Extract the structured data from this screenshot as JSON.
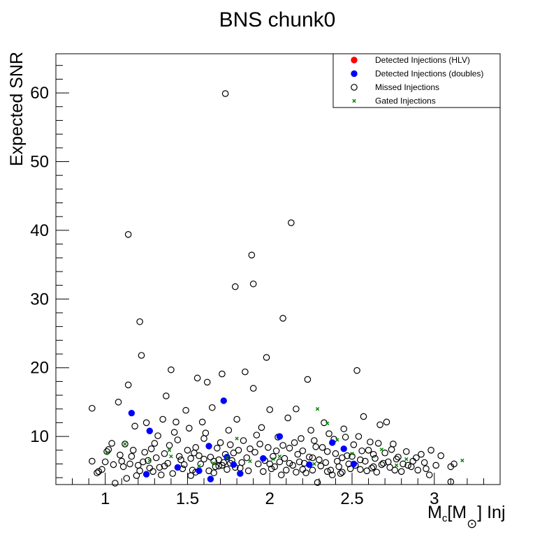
{
  "chart_data": {
    "type": "scatter",
    "title": "BNS chunk0",
    "xlabel": {
      "main": "M",
      "sub": "c",
      "bracket_open": "[M",
      "sun": "⊙",
      "bracket_close": "] Inj"
    },
    "ylabel": "Expected SNR",
    "xlim": [
      0.7,
      3.4
    ],
    "ylim": [
      3.0,
      65.7
    ],
    "x_ticks": [
      {
        "value": 1,
        "label": "1"
      },
      {
        "value": 1.5,
        "label": "1.5"
      },
      {
        "value": 2,
        "label": "2"
      },
      {
        "value": 2.5,
        "label": "2.5"
      },
      {
        "value": 3,
        "label": "3"
      }
    ],
    "y_ticks": [
      {
        "value": 10,
        "label": "10"
      },
      {
        "value": 20,
        "label": "20"
      },
      {
        "value": 30,
        "label": "30"
      },
      {
        "value": 40,
        "label": "40"
      },
      {
        "value": 50,
        "label": "50"
      },
      {
        "value": 60,
        "label": "60"
      }
    ],
    "grid": false,
    "legend_position": "top-right",
    "colors": {
      "hlv": "#ff0000",
      "doubles": "#0000ff",
      "missed": "#000000",
      "gated": "#008000"
    },
    "series": [
      {
        "name": "Detected Injections (HLV)",
        "marker": "filled-circle",
        "color": "#ff0000",
        "points": []
      },
      {
        "name": "Detected Injections (doubles)",
        "marker": "filled-circle",
        "color": "#0000ff",
        "points": [
          [
            1.16,
            13.4
          ],
          [
            1.25,
            4.5
          ],
          [
            1.27,
            10.8
          ],
          [
            1.44,
            5.5
          ],
          [
            1.57,
            5.0
          ],
          [
            1.63,
            8.6
          ],
          [
            1.64,
            3.8
          ],
          [
            1.72,
            15.2
          ],
          [
            1.74,
            7.0
          ],
          [
            1.78,
            5.9
          ],
          [
            1.82,
            4.6
          ],
          [
            1.96,
            6.8
          ],
          [
            2.06,
            10.0
          ],
          [
            2.24,
            5.9
          ],
          [
            2.38,
            9.1
          ],
          [
            2.45,
            8.2
          ],
          [
            2.51,
            6.0
          ]
        ]
      },
      {
        "name": "Missed Injections",
        "marker": "open-circle",
        "color": "#000000",
        "points": [
          [
            0.92,
            14.1
          ],
          [
            0.92,
            6.4
          ],
          [
            0.95,
            4.7
          ],
          [
            0.96,
            4.9
          ],
          [
            0.98,
            5.2
          ],
          [
            1.0,
            6.3
          ],
          [
            1.01,
            7.8
          ],
          [
            1.02,
            8.1
          ],
          [
            1.04,
            9.0
          ],
          [
            1.06,
            3.2
          ],
          [
            1.08,
            15.0
          ],
          [
            1.1,
            6.4
          ],
          [
            1.12,
            8.9
          ],
          [
            1.13,
            3.9
          ],
          [
            1.14,
            17.5
          ],
          [
            1.14,
            39.4
          ],
          [
            1.16,
            7.1
          ],
          [
            1.18,
            11.5
          ],
          [
            1.2,
            5.8
          ],
          [
            1.21,
            26.7
          ],
          [
            1.22,
            21.8
          ],
          [
            1.23,
            6.3
          ],
          [
            1.25,
            12.0
          ],
          [
            1.27,
            5.4
          ],
          [
            1.28,
            8.2
          ],
          [
            1.29,
            4.9
          ],
          [
            1.31,
            6.9
          ],
          [
            1.32,
            10.1
          ],
          [
            1.33,
            5.5
          ],
          [
            1.35,
            12.5
          ],
          [
            1.36,
            7.5
          ],
          [
            1.37,
            15.9
          ],
          [
            1.38,
            6.1
          ],
          [
            1.4,
            19.7
          ],
          [
            1.41,
            4.6
          ],
          [
            1.43,
            12.1
          ],
          [
            1.44,
            9.5
          ],
          [
            1.46,
            6.6
          ],
          [
            1.47,
            5.3
          ],
          [
            1.49,
            13.8
          ],
          [
            1.5,
            8.0
          ],
          [
            1.52,
            6.8
          ],
          [
            1.53,
            5.1
          ],
          [
            1.55,
            4.8
          ],
          [
            1.56,
            18.5
          ],
          [
            1.57,
            7.2
          ],
          [
            1.59,
            12.1
          ],
          [
            1.6,
            9.7
          ],
          [
            1.62,
            17.9
          ],
          [
            1.63,
            5.0
          ],
          [
            1.65,
            14.2
          ],
          [
            1.66,
            6.4
          ],
          [
            1.68,
            8.3
          ],
          [
            1.69,
            5.7
          ],
          [
            1.71,
            19.1
          ],
          [
            1.72,
            6.2
          ],
          [
            1.73,
            59.9
          ],
          [
            1.75,
            10.9
          ],
          [
            1.76,
            8.8
          ],
          [
            1.78,
            7.6
          ],
          [
            1.79,
            31.8
          ],
          [
            1.8,
            12.5
          ],
          [
            1.82,
            5.4
          ],
          [
            1.84,
            9.4
          ],
          [
            1.85,
            19.4
          ],
          [
            1.86,
            6.9
          ],
          [
            1.88,
            8.2
          ],
          [
            1.89,
            36.4
          ],
          [
            1.9,
            32.2
          ],
          [
            1.9,
            17.0
          ],
          [
            1.92,
            10.2
          ],
          [
            1.93,
            6.0
          ],
          [
            1.95,
            11.3
          ],
          [
            1.96,
            4.9
          ],
          [
            1.98,
            21.5
          ],
          [
            1.99,
            8.4
          ],
          [
            2.0,
            13.9
          ],
          [
            2.02,
            7.1
          ],
          [
            2.03,
            5.6
          ],
          [
            2.05,
            9.9
          ],
          [
            2.07,
            4.4
          ],
          [
            2.08,
            27.2
          ],
          [
            2.09,
            6.8
          ],
          [
            2.11,
            12.7
          ],
          [
            2.12,
            8.3
          ],
          [
            2.13,
            41.1
          ],
          [
            2.14,
            5.8
          ],
          [
            2.16,
            14.0
          ],
          [
            2.17,
            7.4
          ],
          [
            2.19,
            9.7
          ],
          [
            2.21,
            6.1
          ],
          [
            2.22,
            4.7
          ],
          [
            2.23,
            18.3
          ],
          [
            2.25,
            10.9
          ],
          [
            2.26,
            6.9
          ],
          [
            2.28,
            8.5
          ],
          [
            2.29,
            3.3
          ],
          [
            2.31,
            5.7
          ],
          [
            2.33,
            12.0
          ],
          [
            2.35,
            7.8
          ],
          [
            2.37,
            5.1
          ],
          [
            2.39,
            9.6
          ],
          [
            2.41,
            6.4
          ],
          [
            2.43,
            4.6
          ],
          [
            2.45,
            11.1
          ],
          [
            2.47,
            7.2
          ],
          [
            2.49,
            5.3
          ],
          [
            2.51,
            8.8
          ],
          [
            2.53,
            19.6
          ],
          [
            2.55,
            6.6
          ],
          [
            2.57,
            12.9
          ],
          [
            2.59,
            5.0
          ],
          [
            2.61,
            9.2
          ],
          [
            2.63,
            7.4
          ],
          [
            2.65,
            4.8
          ],
          [
            2.67,
            11.7
          ],
          [
            2.69,
            6.1
          ],
          [
            2.71,
            12.1
          ],
          [
            2.73,
            5.5
          ],
          [
            2.75,
            8.9
          ],
          [
            2.77,
            6.7
          ],
          [
            2.8,
            4.9
          ],
          [
            2.83,
            7.8
          ],
          [
            2.86,
            5.6
          ],
          [
            2.89,
            6.9
          ],
          [
            2.92,
            7.4
          ],
          [
            2.95,
            5.3
          ],
          [
            2.98,
            8.0
          ],
          [
            3.01,
            5.8
          ],
          [
            3.04,
            7.2
          ],
          [
            3.1,
            5.6
          ],
          [
            3.12,
            6.0
          ],
          [
            1.05,
            5.9
          ],
          [
            1.09,
            7.3
          ],
          [
            1.15,
            6.0
          ],
          [
            1.19,
            4.3
          ],
          [
            1.24,
            7.7
          ],
          [
            1.3,
            9.0
          ],
          [
            1.34,
            4.4
          ],
          [
            1.39,
            8.7
          ],
          [
            1.42,
            10.6
          ],
          [
            1.48,
            5.9
          ],
          [
            1.51,
            11.2
          ],
          [
            1.54,
            7.6
          ],
          [
            1.58,
            6.0
          ],
          [
            1.61,
            10.5
          ],
          [
            1.64,
            7.0
          ],
          [
            1.67,
            5.6
          ],
          [
            1.7,
            9.1
          ],
          [
            1.74,
            5.2
          ],
          [
            1.77,
            6.5
          ],
          [
            1.81,
            8.0
          ],
          [
            1.83,
            6.2
          ],
          [
            1.87,
            5.0
          ],
          [
            1.91,
            7.7
          ],
          [
            1.94,
            8.9
          ],
          [
            1.97,
            6.5
          ],
          [
            2.01,
            5.3
          ],
          [
            2.04,
            7.9
          ],
          [
            2.06,
            6.3
          ],
          [
            2.1,
            5.1
          ],
          [
            2.15,
            9.1
          ],
          [
            2.18,
            6.3
          ],
          [
            2.2,
            5.2
          ],
          [
            2.24,
            7.0
          ],
          [
            2.27,
            9.4
          ],
          [
            2.3,
            6.6
          ],
          [
            2.32,
            8.4
          ],
          [
            2.34,
            6.2
          ],
          [
            2.36,
            10.4
          ],
          [
            2.38,
            4.4
          ],
          [
            2.4,
            7.5
          ],
          [
            2.42,
            5.6
          ],
          [
            2.44,
            6.9
          ],
          [
            2.46,
            9.9
          ],
          [
            2.48,
            6.0
          ],
          [
            2.5,
            7.1
          ],
          [
            2.52,
            5.8
          ],
          [
            2.54,
            10.0
          ],
          [
            2.56,
            7.9
          ],
          [
            2.58,
            6.4
          ],
          [
            2.6,
            8.0
          ],
          [
            2.62,
            5.4
          ],
          [
            2.64,
            6.8
          ],
          [
            2.66,
            9.0
          ],
          [
            2.68,
            5.9
          ],
          [
            2.7,
            7.6
          ],
          [
            2.72,
            6.3
          ],
          [
            2.74,
            8.1
          ],
          [
            2.76,
            5.1
          ],
          [
            2.78,
            7.0
          ],
          [
            2.81,
            6.0
          ],
          [
            2.84,
            5.8
          ],
          [
            2.87,
            6.4
          ],
          [
            2.9,
            5.1
          ],
          [
            2.94,
            6.2
          ],
          [
            2.97,
            4.4
          ],
          [
            1.71,
            5.8
          ],
          [
            1.73,
            7.4
          ],
          [
            1.69,
            6.6
          ],
          [
            1.76,
            6.1
          ],
          [
            1.79,
            5.5
          ],
          [
            1.66,
            4.7
          ],
          [
            1.6,
            6.7
          ],
          [
            1.55,
            8.4
          ],
          [
            1.52,
            4.3
          ],
          [
            1.45,
            7.1
          ],
          [
            1.36,
            5.7
          ],
          [
            1.26,
            6.5
          ],
          [
            1.21,
            5.0
          ],
          [
            1.17,
            8.0
          ],
          [
            1.11,
            5.6
          ],
          [
            2.0,
            6.0
          ],
          [
            2.08,
            8.7
          ],
          [
            2.12,
            6.1
          ],
          [
            2.16,
            4.8
          ],
          [
            2.2,
            7.9
          ],
          [
            2.26,
            5.1
          ],
          [
            2.35,
            4.9
          ],
          [
            2.44,
            4.8
          ],
          [
            2.55,
            5.2
          ],
          [
            2.63,
            5.6
          ],
          [
            3.1,
            3.4
          ]
        ]
      },
      {
        "name": "Gated Injections",
        "marker": "x",
        "color": "#008000",
        "points": [
          [
            1.01,
            7.6
          ],
          [
            1.12,
            8.9
          ],
          [
            1.27,
            6.5
          ],
          [
            1.39,
            8.0
          ],
          [
            1.4,
            7.1
          ],
          [
            1.57,
            5.7
          ],
          [
            1.66,
            6.1
          ],
          [
            1.74,
            6.9
          ],
          [
            1.8,
            9.7
          ],
          [
            1.88,
            6.4
          ],
          [
            2.02,
            6.7
          ],
          [
            2.06,
            7.1
          ],
          [
            2.27,
            6.0
          ],
          [
            2.29,
            14.0
          ],
          [
            2.35,
            11.9
          ],
          [
            2.41,
            9.5
          ],
          [
            2.5,
            7.5
          ],
          [
            2.68,
            8.1
          ],
          [
            2.77,
            5.8
          ],
          [
            2.83,
            6.7
          ],
          [
            3.17,
            6.5
          ]
        ]
      }
    ]
  }
}
